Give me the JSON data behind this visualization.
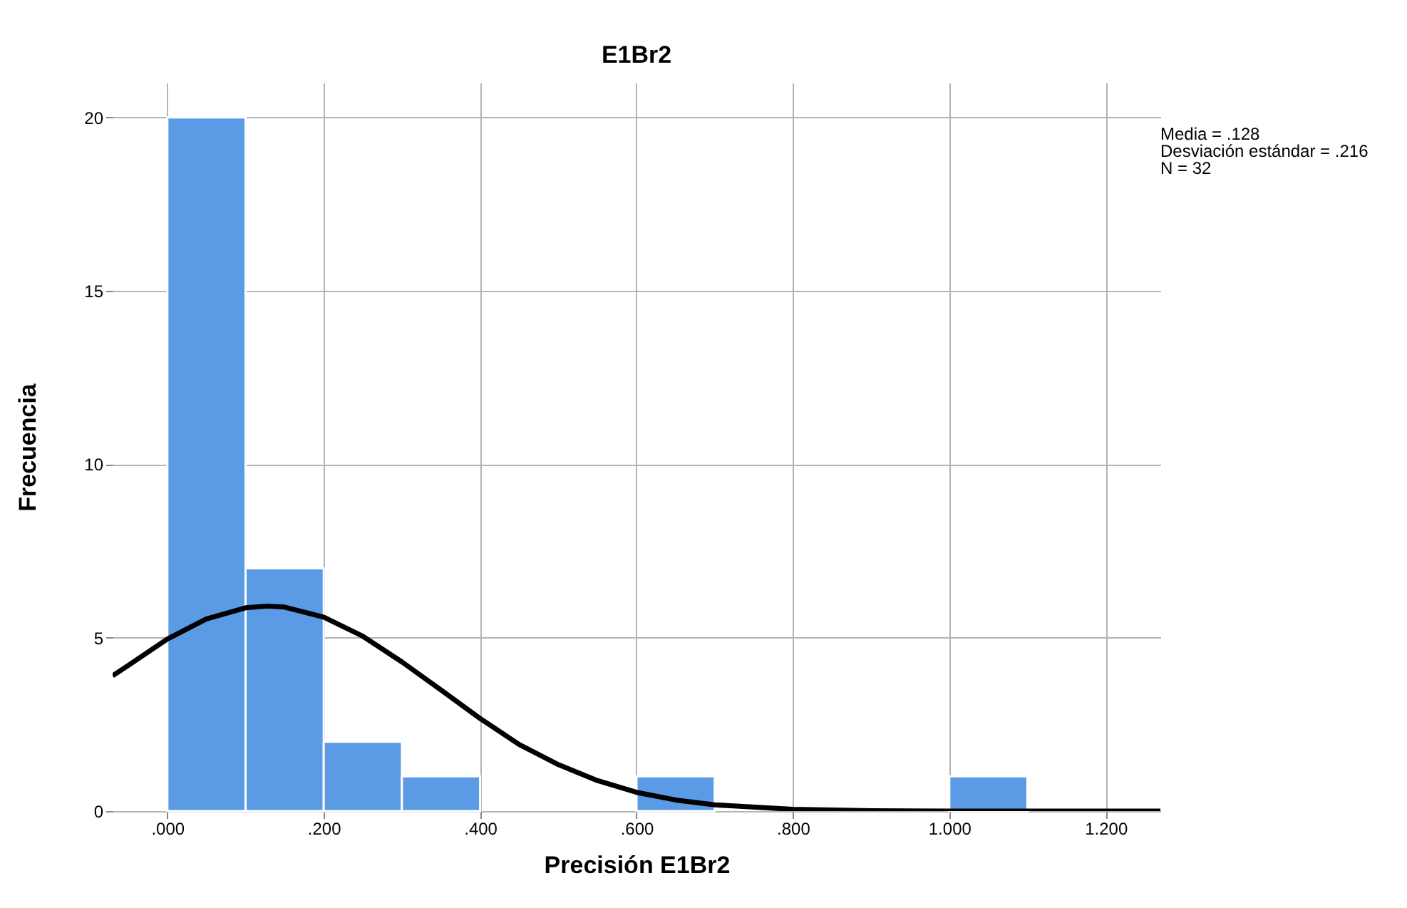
{
  "chart_data": {
    "type": "histogram",
    "title": "E1Br2",
    "xlabel": "Precisión E1Br2",
    "ylabel": "Frecuencia",
    "bins": [
      0,
      0.1,
      0.2,
      0.3,
      0.4,
      0.5,
      0.6,
      0.7,
      0.8,
      0.9,
      1.0,
      1.1
    ],
    "series": [
      {
        "color": "#5b9be6",
        "values": [
          20,
          7,
          2,
          1,
          0,
          0,
          1,
          0,
          0,
          0,
          1
        ]
      },
      {
        "type": "line",
        "color": "#000000",
        "x": [
          -0.07,
          -0.05,
          0,
          0.05,
          0.1,
          0.128,
          0.15,
          0.2,
          0.25,
          0.3,
          0.35,
          0.4,
          0.45,
          0.5,
          0.55,
          0.6,
          0.65,
          0.7,
          0.8,
          0.9,
          1.0,
          1.27
        ],
        "values": [
          3.9,
          4.2,
          4.96,
          5.54,
          5.86,
          5.91,
          5.88,
          5.59,
          5.04,
          4.3,
          3.49,
          2.67,
          1.92,
          1.34,
          0.88,
          0.54,
          0.32,
          0.18,
          0.05,
          0.01,
          0,
          0
        ]
      }
    ],
    "xlim": [
      -0.07,
      1.27
    ],
    "ylim": [
      0,
      21
    ],
    "xticks": [
      {
        "value": 0,
        "label": ".000"
      },
      {
        "value": 0.2,
        "label": ".200"
      },
      {
        "value": 0.4,
        "label": ".400"
      },
      {
        "value": 0.6,
        "label": ".600"
      },
      {
        "value": 0.8,
        "label": ".800"
      },
      {
        "value": 1.0,
        "label": "1.000"
      },
      {
        "value": 1.2,
        "label": "1.200"
      }
    ],
    "yticks": [
      0,
      5,
      10,
      15,
      20
    ],
    "grid": true,
    "annotations": [
      "Media = .128",
      "Desviación estándar = .216",
      "N = 32"
    ]
  }
}
